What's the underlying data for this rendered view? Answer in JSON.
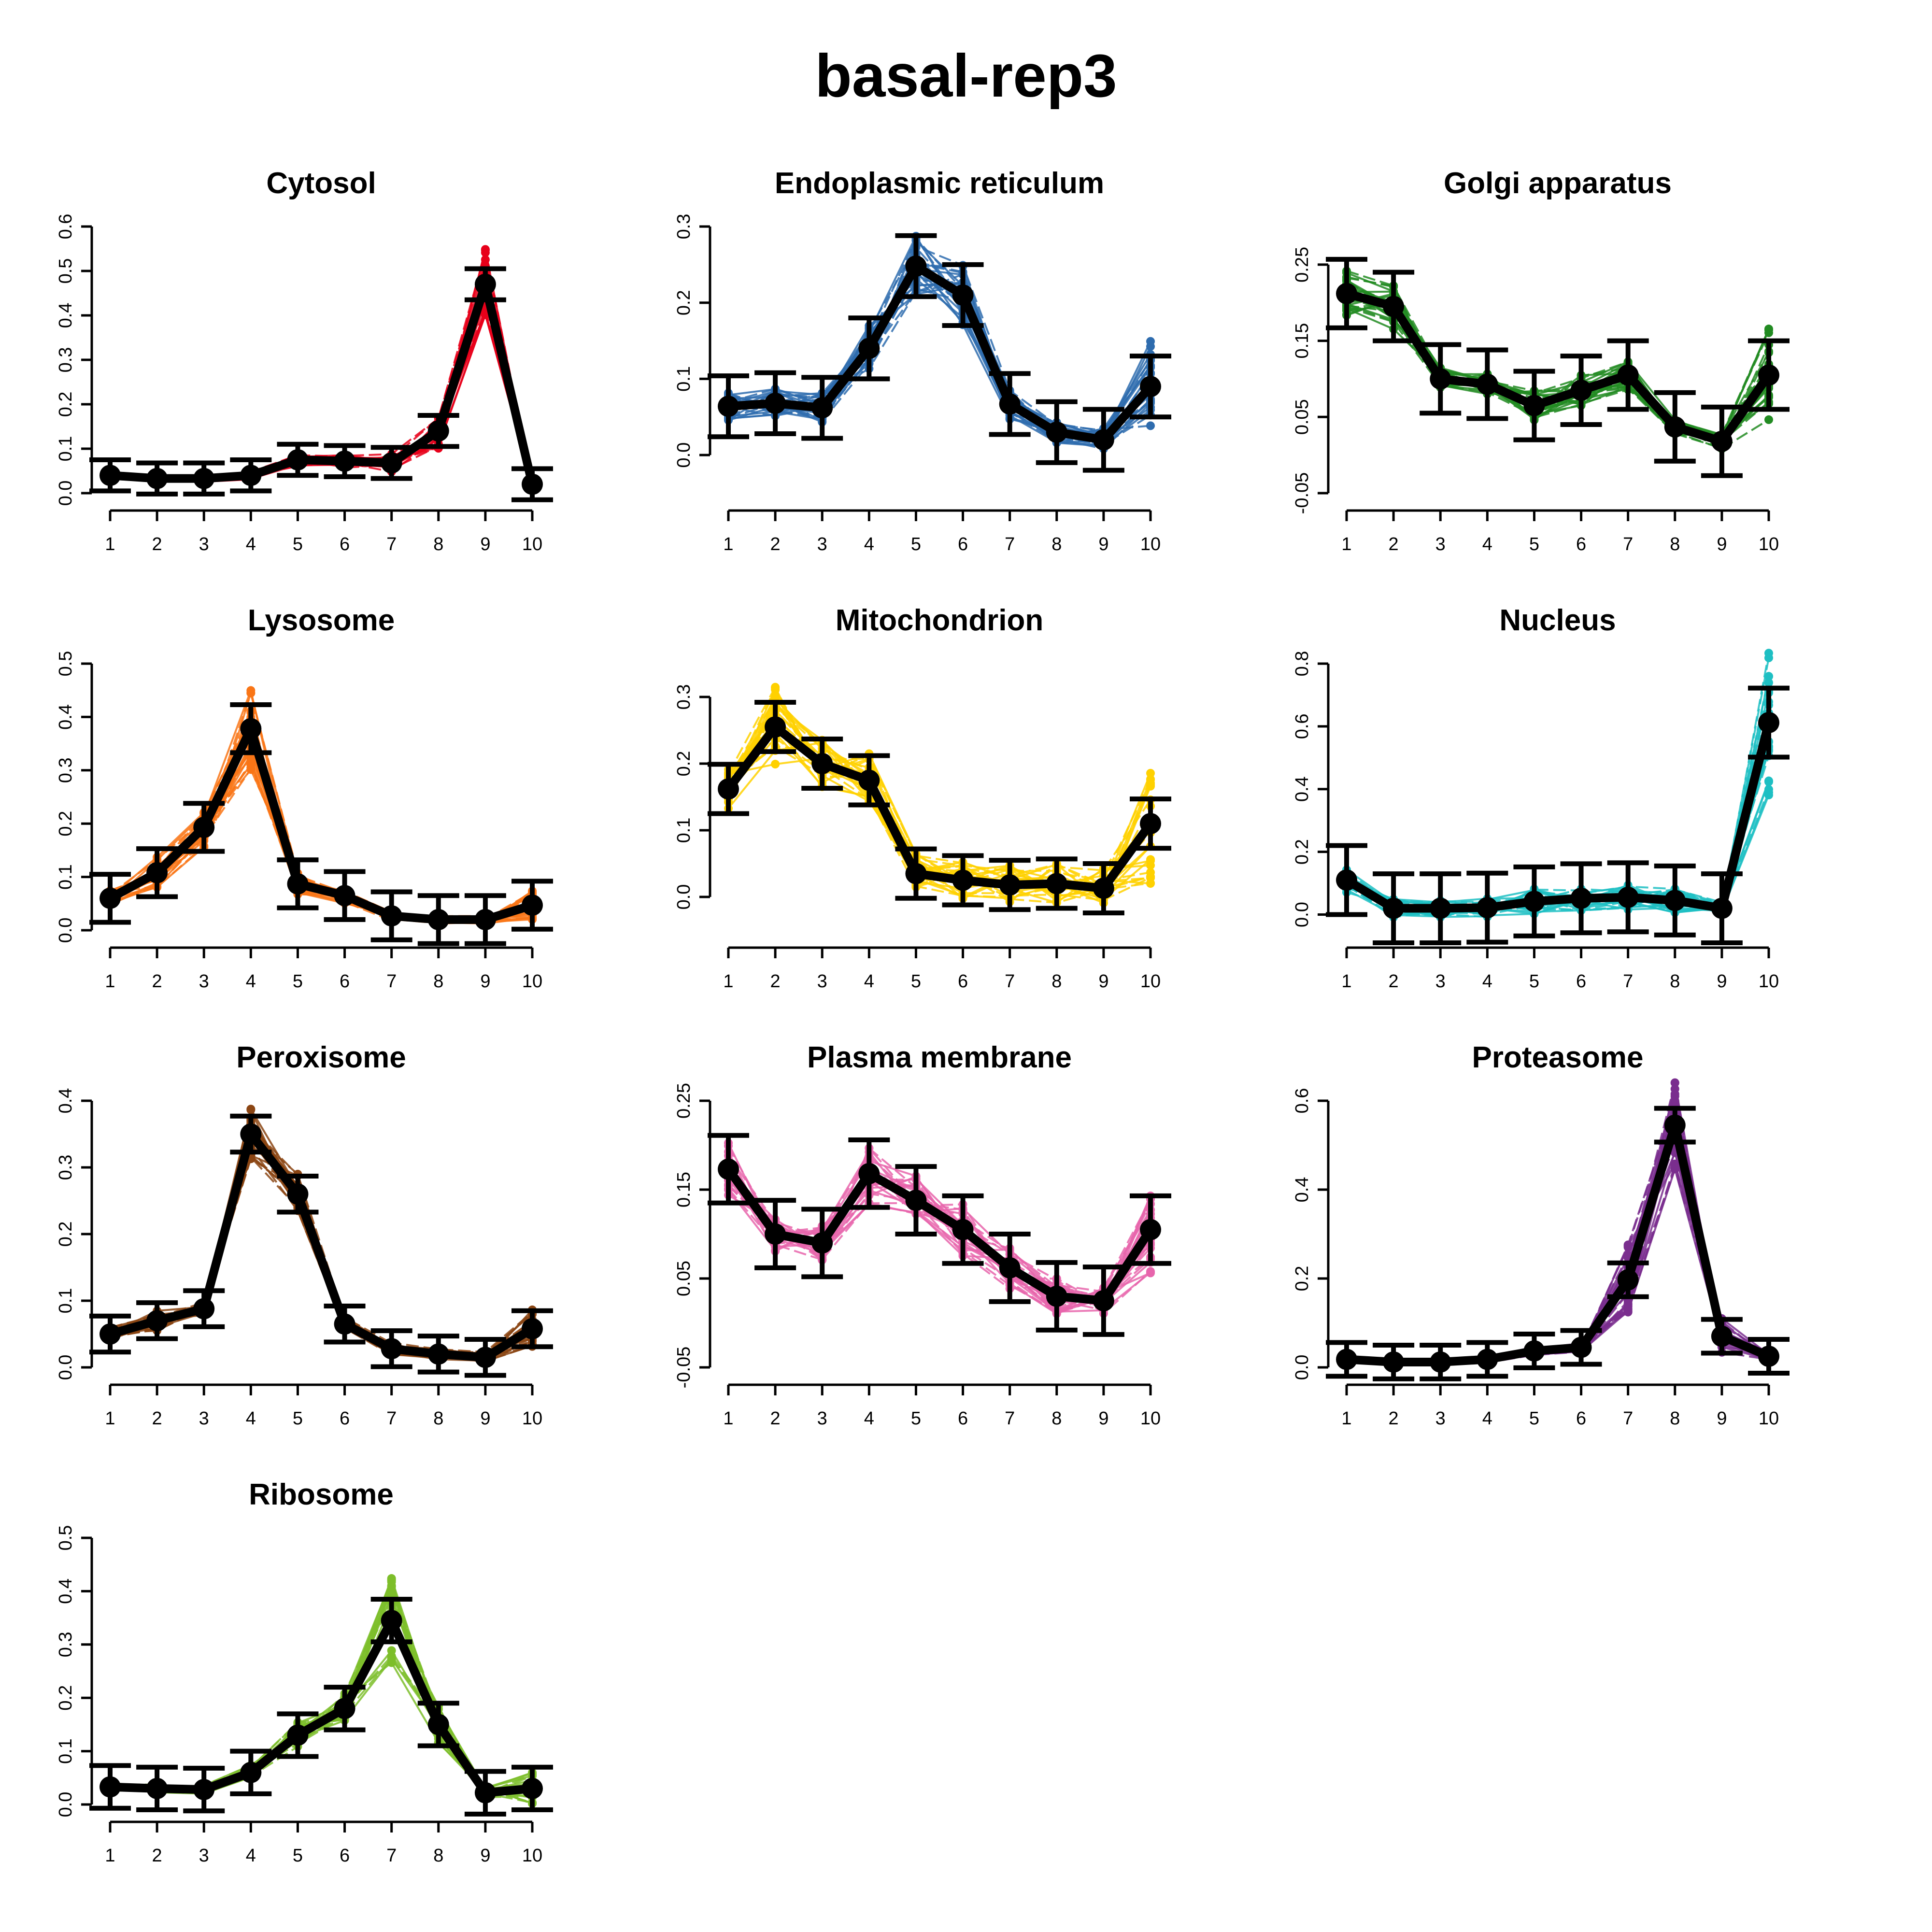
{
  "title": "basal-rep3",
  "chart_data": [
    {
      "type": "line",
      "title": "Cytosol",
      "color": "#E7001A",
      "x": [
        1,
        2,
        3,
        4,
        5,
        6,
        7,
        8,
        9,
        10
      ],
      "ylim": [
        0,
        0.6
      ],
      "yticks": [
        0,
        0.1,
        0.2,
        0.3,
        0.4,
        0.5,
        0.6
      ],
      "ytick_labels": [
        "0.0",
        "0.1",
        "0.2",
        "0.3",
        "0.4",
        "0.5",
        "0.6"
      ],
      "mean": [
        0.04,
        0.033,
        0.033,
        0.04,
        0.075,
        0.072,
        0.068,
        0.14,
        0.47,
        0.02
      ],
      "sd": [
        0.035,
        0.035,
        0.035,
        0.035,
        0.035,
        0.035,
        0.035,
        0.035,
        0.035,
        0.035
      ],
      "spread": [
        0.008,
        0.008,
        0.008,
        0.01,
        0.015,
        0.015,
        0.02,
        0.04,
        0.08,
        0.01
      ]
    },
    {
      "type": "line",
      "title": "Endoplasmic reticulum",
      "color": "#2E6CAE",
      "x": [
        1,
        2,
        3,
        4,
        5,
        6,
        7,
        8,
        9,
        10
      ],
      "ylim": [
        -0.05,
        0.3
      ],
      "yticks": [
        0,
        0.1,
        0.2,
        0.3
      ],
      "ytick_labels": [
        "0.0",
        "0.1",
        "0.2",
        "0.3"
      ],
      "mean": [
        0.064,
        0.068,
        0.062,
        0.14,
        0.248,
        0.21,
        0.067,
        0.03,
        0.02,
        0.09
      ],
      "sd": [
        0.04,
        0.04,
        0.04,
        0.04,
        0.04,
        0.04,
        0.04,
        0.04,
        0.04,
        0.04
      ],
      "spread": [
        0.02,
        0.02,
        0.02,
        0.03,
        0.04,
        0.04,
        0.02,
        0.015,
        0.015,
        0.06
      ]
    },
    {
      "type": "line",
      "title": "Golgi apparatus",
      "color": "#228B22",
      "x": [
        1,
        2,
        3,
        4,
        5,
        6,
        7,
        8,
        9,
        10
      ],
      "ylim": [
        -0.05,
        0.3
      ],
      "yticks": [
        -0.05,
        0.05,
        0.15,
        0.25
      ],
      "ytick_labels": [
        "-0.05",
        "0.05",
        "0.15",
        "0.25"
      ],
      "mean": [
        0.212,
        0.195,
        0.1,
        0.093,
        0.065,
        0.085,
        0.105,
        0.037,
        0.018,
        0.105
      ],
      "sd": [
        0.045,
        0.045,
        0.045,
        0.045,
        0.045,
        0.045,
        0.045,
        0.045,
        0.045,
        0.045
      ],
      "spread": [
        0.03,
        0.03,
        0.015,
        0.015,
        0.02,
        0.02,
        0.02,
        0.01,
        0.01,
        0.07
      ]
    },
    {
      "type": "line",
      "title": "Lysosome",
      "color": "#F97516",
      "x": [
        1,
        2,
        3,
        4,
        5,
        6,
        7,
        8,
        9,
        10
      ],
      "ylim": [
        0,
        0.5
      ],
      "yticks": [
        0,
        0.1,
        0.2,
        0.3,
        0.4,
        0.5
      ],
      "ytick_labels": [
        "0.0",
        "0.1",
        "0.2",
        "0.3",
        "0.4",
        "0.5"
      ],
      "mean": [
        0.06,
        0.108,
        0.193,
        0.378,
        0.087,
        0.065,
        0.027,
        0.02,
        0.02,
        0.047
      ],
      "sd": [
        0.045,
        0.045,
        0.045,
        0.045,
        0.045,
        0.045,
        0.045,
        0.045,
        0.045,
        0.045
      ],
      "spread": [
        0.015,
        0.03,
        0.04,
        0.08,
        0.02,
        0.015,
        0.01,
        0.008,
        0.008,
        0.03
      ]
    },
    {
      "type": "line",
      "title": "Mitochondrion",
      "color": "#FFD100",
      "x": [
        1,
        2,
        3,
        4,
        5,
        6,
        7,
        8,
        9,
        10
      ],
      "ylim": [
        -0.05,
        0.35
      ],
      "yticks": [
        0,
        0.1,
        0.2,
        0.3
      ],
      "ytick_labels": [
        "0.0",
        "0.1",
        "0.2",
        "0.3"
      ],
      "mean": [
        0.162,
        0.255,
        0.2,
        0.175,
        0.035,
        0.025,
        0.018,
        0.02,
        0.013,
        0.11
      ],
      "sd": [
        0.037,
        0.037,
        0.037,
        0.037,
        0.037,
        0.037,
        0.037,
        0.037,
        0.037,
        0.037
      ],
      "spread": [
        0.03,
        0.06,
        0.04,
        0.04,
        0.03,
        0.03,
        0.03,
        0.03,
        0.03,
        0.1
      ]
    },
    {
      "type": "line",
      "title": "Nucleus",
      "color": "#1EBFC3",
      "x": [
        1,
        2,
        3,
        4,
        5,
        6,
        7,
        8,
        9,
        10
      ],
      "ylim": [
        -0.05,
        0.8
      ],
      "yticks": [
        0,
        0.2,
        0.4,
        0.6,
        0.8
      ],
      "ytick_labels": [
        "0.0",
        "0.2",
        "0.4",
        "0.6",
        "0.8"
      ],
      "mean": [
        0.11,
        0.02,
        0.02,
        0.022,
        0.042,
        0.052,
        0.055,
        0.045,
        0.02,
        0.612
      ],
      "sd": [
        0.11,
        0.11,
        0.11,
        0.11,
        0.11,
        0.11,
        0.11,
        0.11,
        0.11,
        0.11
      ],
      "spread": [
        0.04,
        0.03,
        0.03,
        0.03,
        0.04,
        0.04,
        0.04,
        0.04,
        0.02,
        0.25
      ]
    },
    {
      "type": "line",
      "title": "Peroxisome",
      "color": "#8B4513",
      "x": [
        1,
        2,
        3,
        4,
        5,
        6,
        7,
        8,
        9,
        10
      ],
      "ylim": [
        0,
        0.4
      ],
      "yticks": [
        0,
        0.1,
        0.2,
        0.3,
        0.4
      ],
      "ytick_labels": [
        "0.0",
        "0.1",
        "0.2",
        "0.3",
        "0.4"
      ],
      "mean": [
        0.05,
        0.07,
        0.088,
        0.35,
        0.26,
        0.065,
        0.028,
        0.02,
        0.015,
        0.058
      ],
      "sd": [
        0.027,
        0.027,
        0.027,
        0.027,
        0.027,
        0.027,
        0.027,
        0.027,
        0.027,
        0.027
      ],
      "spread": [
        0.01,
        0.015,
        0.01,
        0.04,
        0.03,
        0.01,
        0.01,
        0.008,
        0.008,
        0.03
      ]
    },
    {
      "type": "line",
      "title": "Plasma membrane",
      "color": "#E765AC",
      "x": [
        1,
        2,
        3,
        4,
        5,
        6,
        7,
        8,
        9,
        10
      ],
      "ylim": [
        -0.05,
        0.25
      ],
      "yticks": [
        -0.05,
        0.05,
        0.15,
        0.25
      ],
      "ytick_labels": [
        "-0.05",
        "0.05",
        "0.15",
        "0.25"
      ],
      "mean": [
        0.173,
        0.1,
        0.09,
        0.168,
        0.138,
        0.105,
        0.062,
        0.03,
        0.025,
        0.105
      ],
      "sd": [
        0.038,
        0.038,
        0.038,
        0.038,
        0.038,
        0.038,
        0.038,
        0.038,
        0.038,
        0.038
      ],
      "spread": [
        0.03,
        0.02,
        0.02,
        0.035,
        0.03,
        0.03,
        0.025,
        0.02,
        0.015,
        0.05
      ]
    },
    {
      "type": "line",
      "title": "Proteasome",
      "color": "#7A2E8E",
      "x": [
        1,
        2,
        3,
        4,
        5,
        6,
        7,
        8,
        9,
        10
      ],
      "ylim": [
        0,
        0.6
      ],
      "yticks": [
        0,
        0.2,
        0.4,
        0.6
      ],
      "ytick_labels": [
        "0.0",
        "0.2",
        "0.4",
        "0.6"
      ],
      "mean": [
        0.018,
        0.012,
        0.012,
        0.018,
        0.037,
        0.045,
        0.197,
        0.545,
        0.07,
        0.025
      ],
      "sd": [
        0.038,
        0.038,
        0.038,
        0.038,
        0.038,
        0.038,
        0.038,
        0.038,
        0.038,
        0.038
      ],
      "spread": [
        0.008,
        0.008,
        0.008,
        0.008,
        0.01,
        0.01,
        0.08,
        0.1,
        0.04,
        0.01
      ]
    },
    {
      "type": "line",
      "title": "Ribosome",
      "color": "#7DBE2A",
      "x": [
        1,
        2,
        3,
        4,
        5,
        6,
        7,
        8,
        9,
        10
      ],
      "ylim": [
        0,
        0.5
      ],
      "yticks": [
        0,
        0.1,
        0.2,
        0.3,
        0.4,
        0.5
      ],
      "ytick_labels": [
        "0.0",
        "0.1",
        "0.2",
        "0.3",
        "0.4",
        "0.5"
      ],
      "mean": [
        0.033,
        0.03,
        0.028,
        0.06,
        0.13,
        0.18,
        0.345,
        0.15,
        0.022,
        0.03
      ],
      "sd": [
        0.04,
        0.04,
        0.04,
        0.04,
        0.04,
        0.04,
        0.04,
        0.04,
        0.04,
        0.04
      ],
      "spread": [
        0.008,
        0.008,
        0.008,
        0.015,
        0.025,
        0.03,
        0.08,
        0.035,
        0.01,
        0.03
      ]
    }
  ]
}
